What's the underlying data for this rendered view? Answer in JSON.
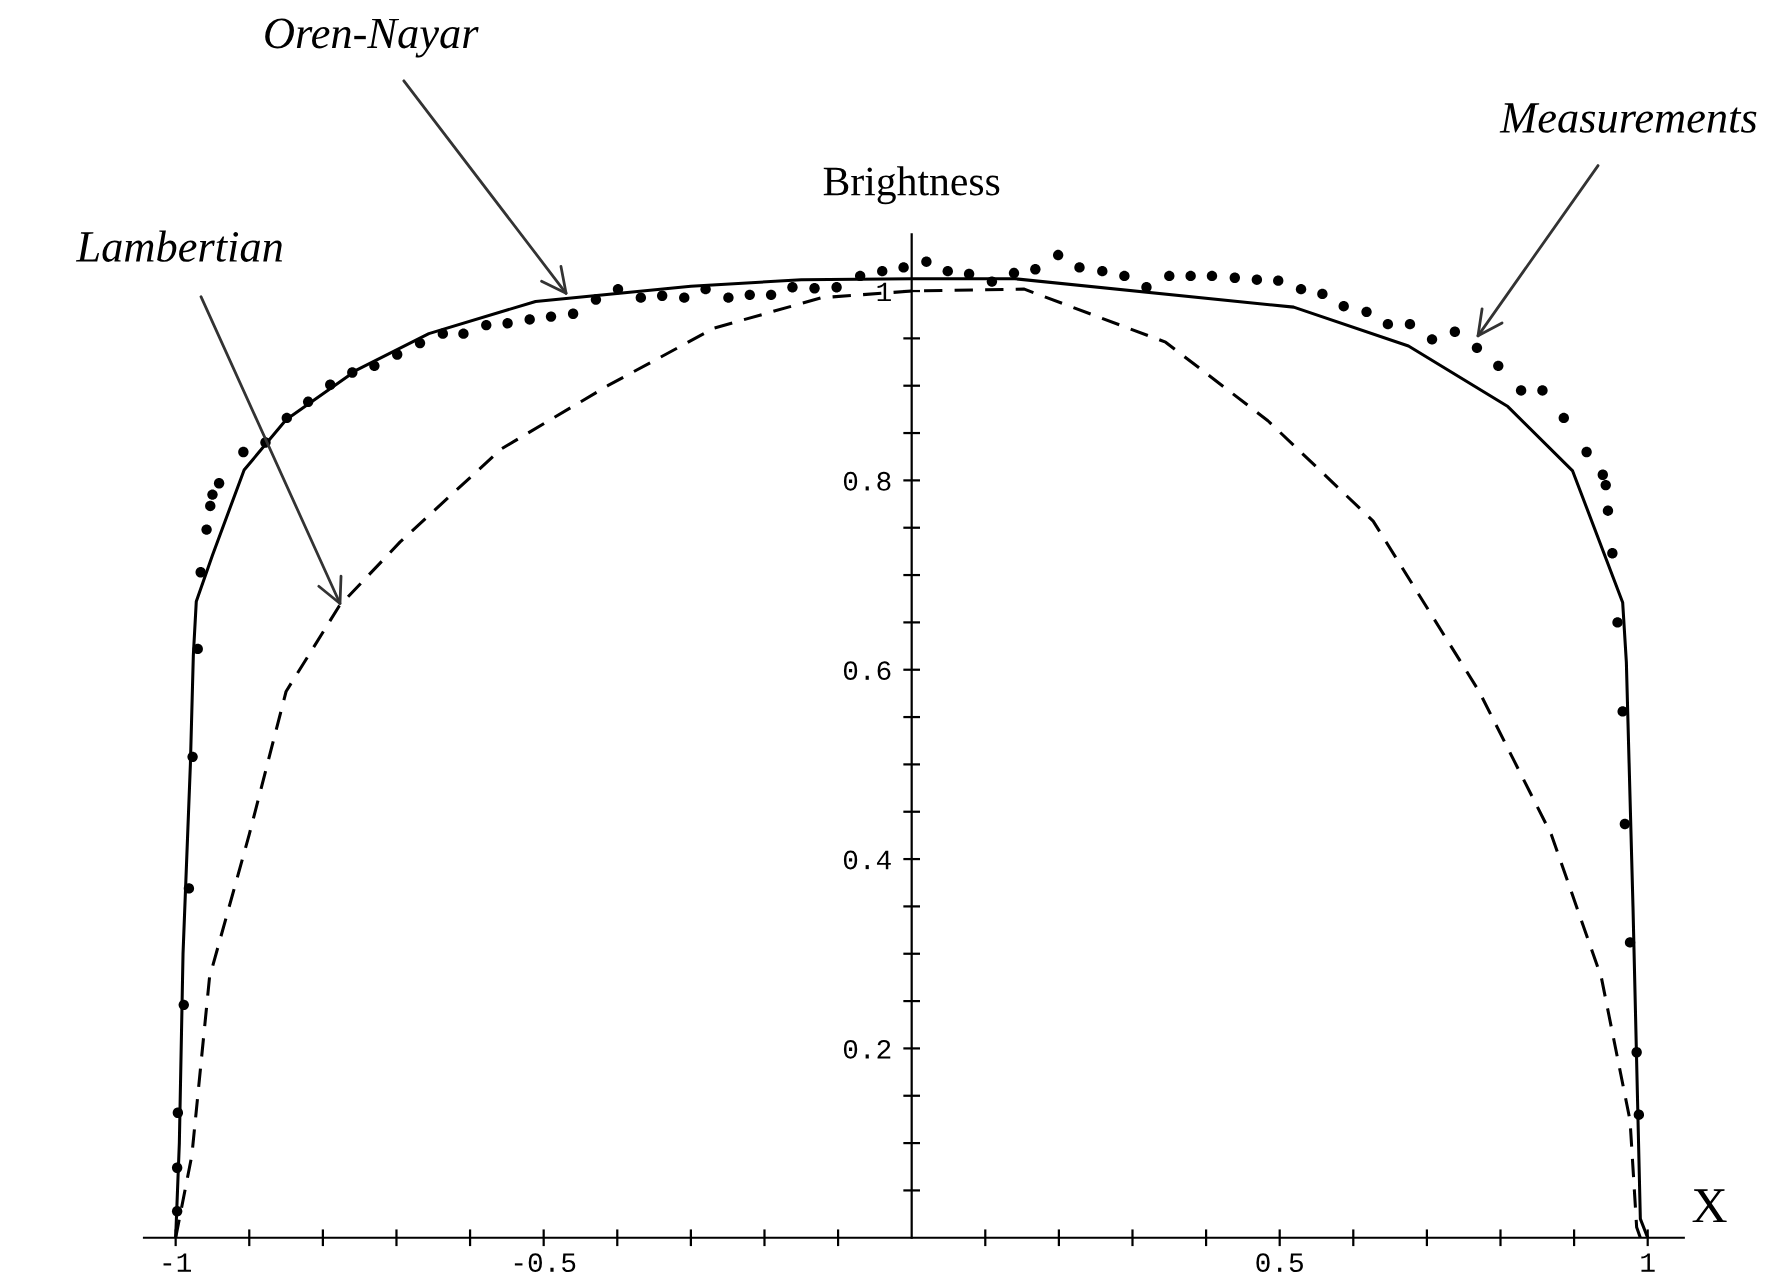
{
  "chart_data": {
    "type": "line",
    "xlabel": "X",
    "ylabel": "Brightness",
    "xlim": [
      -1.043,
      1.049
    ],
    "ylim": [
      0,
      1.06
    ],
    "xticks": [
      {
        "value": -1,
        "label": "-1"
      },
      {
        "value": -0.9,
        "label": null
      },
      {
        "value": -0.8,
        "label": null
      },
      {
        "value": -0.7,
        "label": null
      },
      {
        "value": -0.6,
        "label": null
      },
      {
        "value": -0.5,
        "label": "-0.5"
      },
      {
        "value": -0.4,
        "label": null
      },
      {
        "value": -0.3,
        "label": null
      },
      {
        "value": -0.2,
        "label": null
      },
      {
        "value": -0.1,
        "label": null
      },
      {
        "value": 0.1,
        "label": null
      },
      {
        "value": 0.2,
        "label": null
      },
      {
        "value": 0.3,
        "label": null
      },
      {
        "value": 0.4,
        "label": null
      },
      {
        "value": 0.5,
        "label": "0.5"
      },
      {
        "value": 0.6,
        "label": null
      },
      {
        "value": 0.7,
        "label": null
      },
      {
        "value": 0.8,
        "label": null
      },
      {
        "value": 0.9,
        "label": null
      },
      {
        "value": 1,
        "label": "1"
      }
    ],
    "yticks": [
      {
        "value": 0.05,
        "label": null
      },
      {
        "value": 0.1,
        "label": null
      },
      {
        "value": 0.15,
        "label": null
      },
      0.2,
      {
        "value": 0.25,
        "label": null
      },
      {
        "value": 0.3,
        "label": null
      },
      {
        "value": 0.35,
        "label": null
      },
      0.4,
      {
        "value": 0.45,
        "label": null
      },
      {
        "value": 0.5,
        "label": null
      },
      {
        "value": 0.55,
        "label": null
      },
      0.6,
      {
        "value": 0.65,
        "label": null
      },
      {
        "value": 0.7,
        "label": null
      },
      {
        "value": 0.75,
        "label": null
      },
      0.8,
      {
        "value": 0.85,
        "label": null
      },
      {
        "value": 0.9,
        "label": null
      },
      {
        "value": 0.95,
        "label": null
      },
      1
    ],
    "grid": false,
    "series": [
      {
        "type": "scatter",
        "color": "#000000",
        "marker": "circle",
        "x": [
          -0.998,
          -0.998,
          -0.997,
          -0.989,
          -0.982,
          -0.977,
          -0.97,
          -0.966,
          -0.958,
          -0.953,
          -0.95,
          -0.941,
          -0.908,
          -0.878,
          -0.849,
          -0.82,
          -0.79,
          -0.76,
          -0.73,
          -0.699,
          -0.668,
          -0.637,
          -0.609,
          -0.578,
          -0.549,
          -0.519,
          -0.49,
          -0.46,
          -0.429,
          -0.399,
          -0.368,
          -0.339,
          -0.309,
          -0.28,
          -0.249,
          -0.22,
          -0.191,
          -0.162,
          -0.132,
          -0.102,
          -0.07,
          -0.04,
          -0.011,
          0.02,
          0.049,
          0.078,
          0.109,
          0.139,
          0.168,
          0.199,
          0.228,
          0.259,
          0.289,
          0.319,
          0.35,
          0.379,
          0.408,
          0.439,
          0.469,
          0.498,
          0.529,
          0.558,
          0.587,
          0.618,
          0.647,
          0.677,
          0.707,
          0.738,
          0.768,
          0.797,
          0.828,
          0.857,
          0.886,
          0.917,
          0.939,
          0.943,
          0.946,
          0.952,
          0.959,
          0.966,
          0.969,
          0.976,
          0.985,
          0.988
        ],
        "values": [
          0.028,
          0.074,
          0.132,
          0.246,
          0.369,
          0.508,
          0.622,
          0.703,
          0.748,
          0.773,
          0.785,
          0.797,
          0.83,
          0.84,
          0.866,
          0.883,
          0.901,
          0.914,
          0.921,
          0.933,
          0.945,
          0.955,
          0.955,
          0.964,
          0.966,
          0.97,
          0.973,
          0.976,
          0.991,
          1.002,
          0.993,
          0.995,
          0.993,
          1.002,
          0.993,
          0.996,
          0.996,
          1.004,
          1.003,
          1.004,
          1.016,
          1.021,
          1.025,
          1.031,
          1.021,
          1.018,
          1.01,
          1.019,
          1.023,
          1.038,
          1.025,
          1.021,
          1.016,
          1.004,
          1.016,
          1.016,
          1.016,
          1.014,
          1.012,
          1.011,
          1.002,
          0.997,
          0.984,
          0.978,
          0.965,
          0.965,
          0.949,
          0.957,
          0.94,
          0.921,
          0.895,
          0.895,
          0.866,
          0.83,
          0.806,
          0.795,
          0.768,
          0.723,
          0.65,
          0.556,
          0.437,
          0.312,
          0.196,
          0.13
        ]
      },
      {
        "color": "#000000",
        "line_style": "solid",
        "x": [
          -1,
          -0.995,
          -0.99,
          -0.98,
          -0.976,
          -0.972,
          -0.95,
          -0.907,
          -0.85,
          -0.753,
          -0.656,
          -0.511,
          -0.3,
          -0.15,
          0,
          0.14,
          0.519,
          0.675,
          0.81,
          0.898,
          0.966,
          0.971,
          0.98,
          0.99,
          1.0
        ],
        "values": [
          0,
          0.1,
          0.3,
          0.5,
          0.615,
          0.672,
          0.721,
          0.811,
          0.864,
          0.917,
          0.955,
          0.989,
          1.005,
          1.012,
          1.013,
          1.013,
          0.983,
          0.942,
          0.878,
          0.81,
          0.671,
          0.608,
          0.35,
          0.02,
          0
        ]
      },
      {
        "color": "#000000",
        "line_style": "dashed",
        "x": [
          -1,
          -0.978,
          -0.954,
          -0.9,
          -0.85,
          -0.778,
          -0.695,
          -0.558,
          -0.413,
          -0.268,
          -0.122,
          0,
          0.153,
          0.345,
          0.484,
          0.627,
          0.771,
          0.869,
          0.937,
          0.976,
          0.985,
          0.99
        ],
        "values": [
          0,
          0.087,
          0.275,
          0.426,
          0.577,
          0.667,
          0.735,
          0.833,
          0.9,
          0.961,
          0.993,
          1.0,
          1.002,
          0.946,
          0.863,
          0.757,
          0.577,
          0.426,
          0.275,
          0.124,
          0.011,
          0
        ]
      }
    ],
    "annotations": [
      {
        "text": "Oren-Nayar",
        "x": -0.467,
        "y": 0.995
      },
      {
        "text": "Lambertian",
        "x": -0.775,
        "y": 0.667
      },
      {
        "text": "Measurements",
        "x": 0.767,
        "y": 0.95
      }
    ]
  }
}
